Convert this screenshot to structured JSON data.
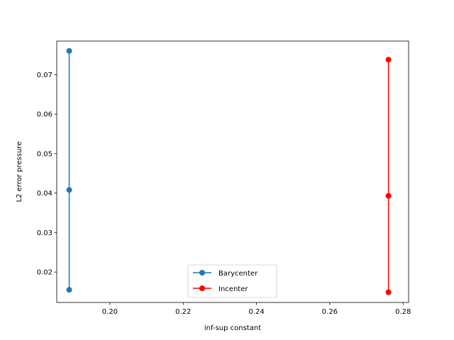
{
  "chart_data": {
    "type": "line",
    "title": "",
    "xlabel": "inf-sup constant",
    "ylabel": "L2 error pressure",
    "xlim": [
      0.1855,
      0.2815
    ],
    "ylim": [
      0.0123,
      0.0785
    ],
    "xticks": [
      0.2,
      0.22,
      0.24,
      0.26,
      0.28
    ],
    "xtick_labels": [
      "0.20",
      "0.22",
      "0.24",
      "0.26",
      "0.28"
    ],
    "yticks": [
      0.02,
      0.03,
      0.04,
      0.05,
      0.06,
      0.07
    ],
    "ytick_labels": [
      "0.02",
      "0.03",
      "0.04",
      "0.05",
      "0.06",
      "0.07"
    ],
    "grid": false,
    "legend_position": "lower center",
    "series": [
      {
        "name": "Barycenter",
        "color": "#1f77b4",
        "marker": "circle",
        "x": [
          0.1889,
          0.1889,
          0.1889
        ],
        "y": [
          0.076,
          0.0408,
          0.0155
        ]
      },
      {
        "name": "Incenter",
        "color": "#ff0000",
        "marker": "circle",
        "x": [
          0.276,
          0.276,
          0.276
        ],
        "y": [
          0.0738,
          0.0393,
          0.0149
        ]
      }
    ]
  }
}
